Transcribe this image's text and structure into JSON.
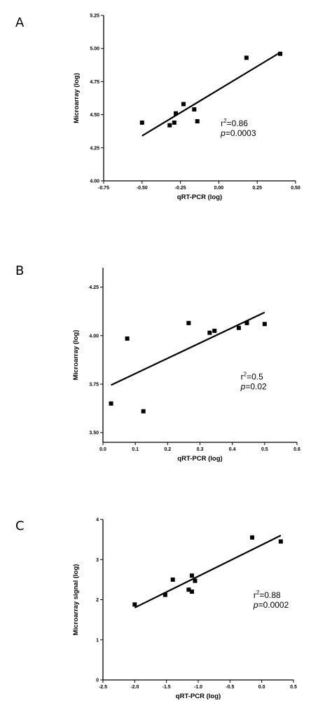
{
  "chart_data": [
    {
      "panel": "A",
      "type": "scatter",
      "xlabel": "qRT-PCR (log)",
      "ylabel": "Microarray (log)",
      "xlim": [
        -0.75,
        0.5
      ],
      "ylim": [
        4.0,
        5.25
      ],
      "xticks": [
        "-0.75",
        "-0.50",
        "-0.25",
        "0.00",
        "0.25",
        "0.50"
      ],
      "yticks": [
        "4.00",
        "4.25",
        "4.50",
        "4.75",
        "5.00",
        "5.25"
      ],
      "x": [
        -0.5,
        -0.32,
        -0.29,
        -0.28,
        -0.23,
        -0.16,
        -0.14,
        0.18,
        0.4
      ],
      "y": [
        4.44,
        4.42,
        4.44,
        4.51,
        4.58,
        4.54,
        4.45,
        4.93,
        4.96
      ],
      "fit": {
        "x": [
          -0.5,
          0.4
        ],
        "y": [
          4.34,
          4.97
        ]
      },
      "stats": {
        "r2_label": "r",
        "r2_sup": "2",
        "r2_value": "=0.86",
        "p_label": "p",
        "p_value": "=0.0003"
      }
    },
    {
      "panel": "B",
      "type": "scatter",
      "xlabel": "qRT-PCR (log)",
      "ylabel": "Microarray (log)",
      "xlim": [
        0.0,
        0.6
      ],
      "ylim": [
        3.45,
        4.35
      ],
      "xticks": [
        "0.0",
        "0.1",
        "0.2",
        "0.3",
        "0.4",
        "0.5",
        "0.6"
      ],
      "yticks": [
        "3.50",
        "3.75",
        "4.00",
        "4.25"
      ],
      "x": [
        0.025,
        0.075,
        0.125,
        0.265,
        0.33,
        0.345,
        0.42,
        0.445,
        0.5
      ],
      "y": [
        3.65,
        3.985,
        3.61,
        4.065,
        4.015,
        4.025,
        4.04,
        4.065,
        4.06
      ],
      "fit": {
        "x": [
          0.025,
          0.5
        ],
        "y": [
          3.745,
          4.12
        ]
      },
      "stats": {
        "r2_label": "r",
        "r2_sup": "2",
        "r2_value": "=0.5",
        "p_label": "p",
        "p_value": "=0.02"
      }
    },
    {
      "panel": "C",
      "type": "scatter",
      "xlabel": "qRT-PCR (log)",
      "ylabel": "Microarray signal (log)",
      "xlim": [
        -2.5,
        0.5
      ],
      "ylim": [
        0,
        4
      ],
      "xticks": [
        "-2.5",
        "-2.0",
        "-1.5",
        "-1.0",
        "-0.5",
        "0.0",
        "0.5"
      ],
      "yticks": [
        "0",
        "1",
        "2",
        "3",
        "4"
      ],
      "x": [
        -2.0,
        -1.52,
        -1.4,
        -1.15,
        -1.1,
        -1.1,
        -1.05,
        -0.15,
        0.3
      ],
      "y": [
        1.88,
        2.12,
        2.5,
        2.25,
        2.2,
        2.6,
        2.47,
        3.55,
        3.45
      ],
      "fit": {
        "x": [
          -2.0,
          0.3
        ],
        "y": [
          1.8,
          3.6
        ]
      },
      "stats": {
        "r2_label": "r",
        "r2_sup": "2",
        "r2_value": "=0.88",
        "p_label": "p",
        "p_value": "=0.0002"
      }
    }
  ]
}
